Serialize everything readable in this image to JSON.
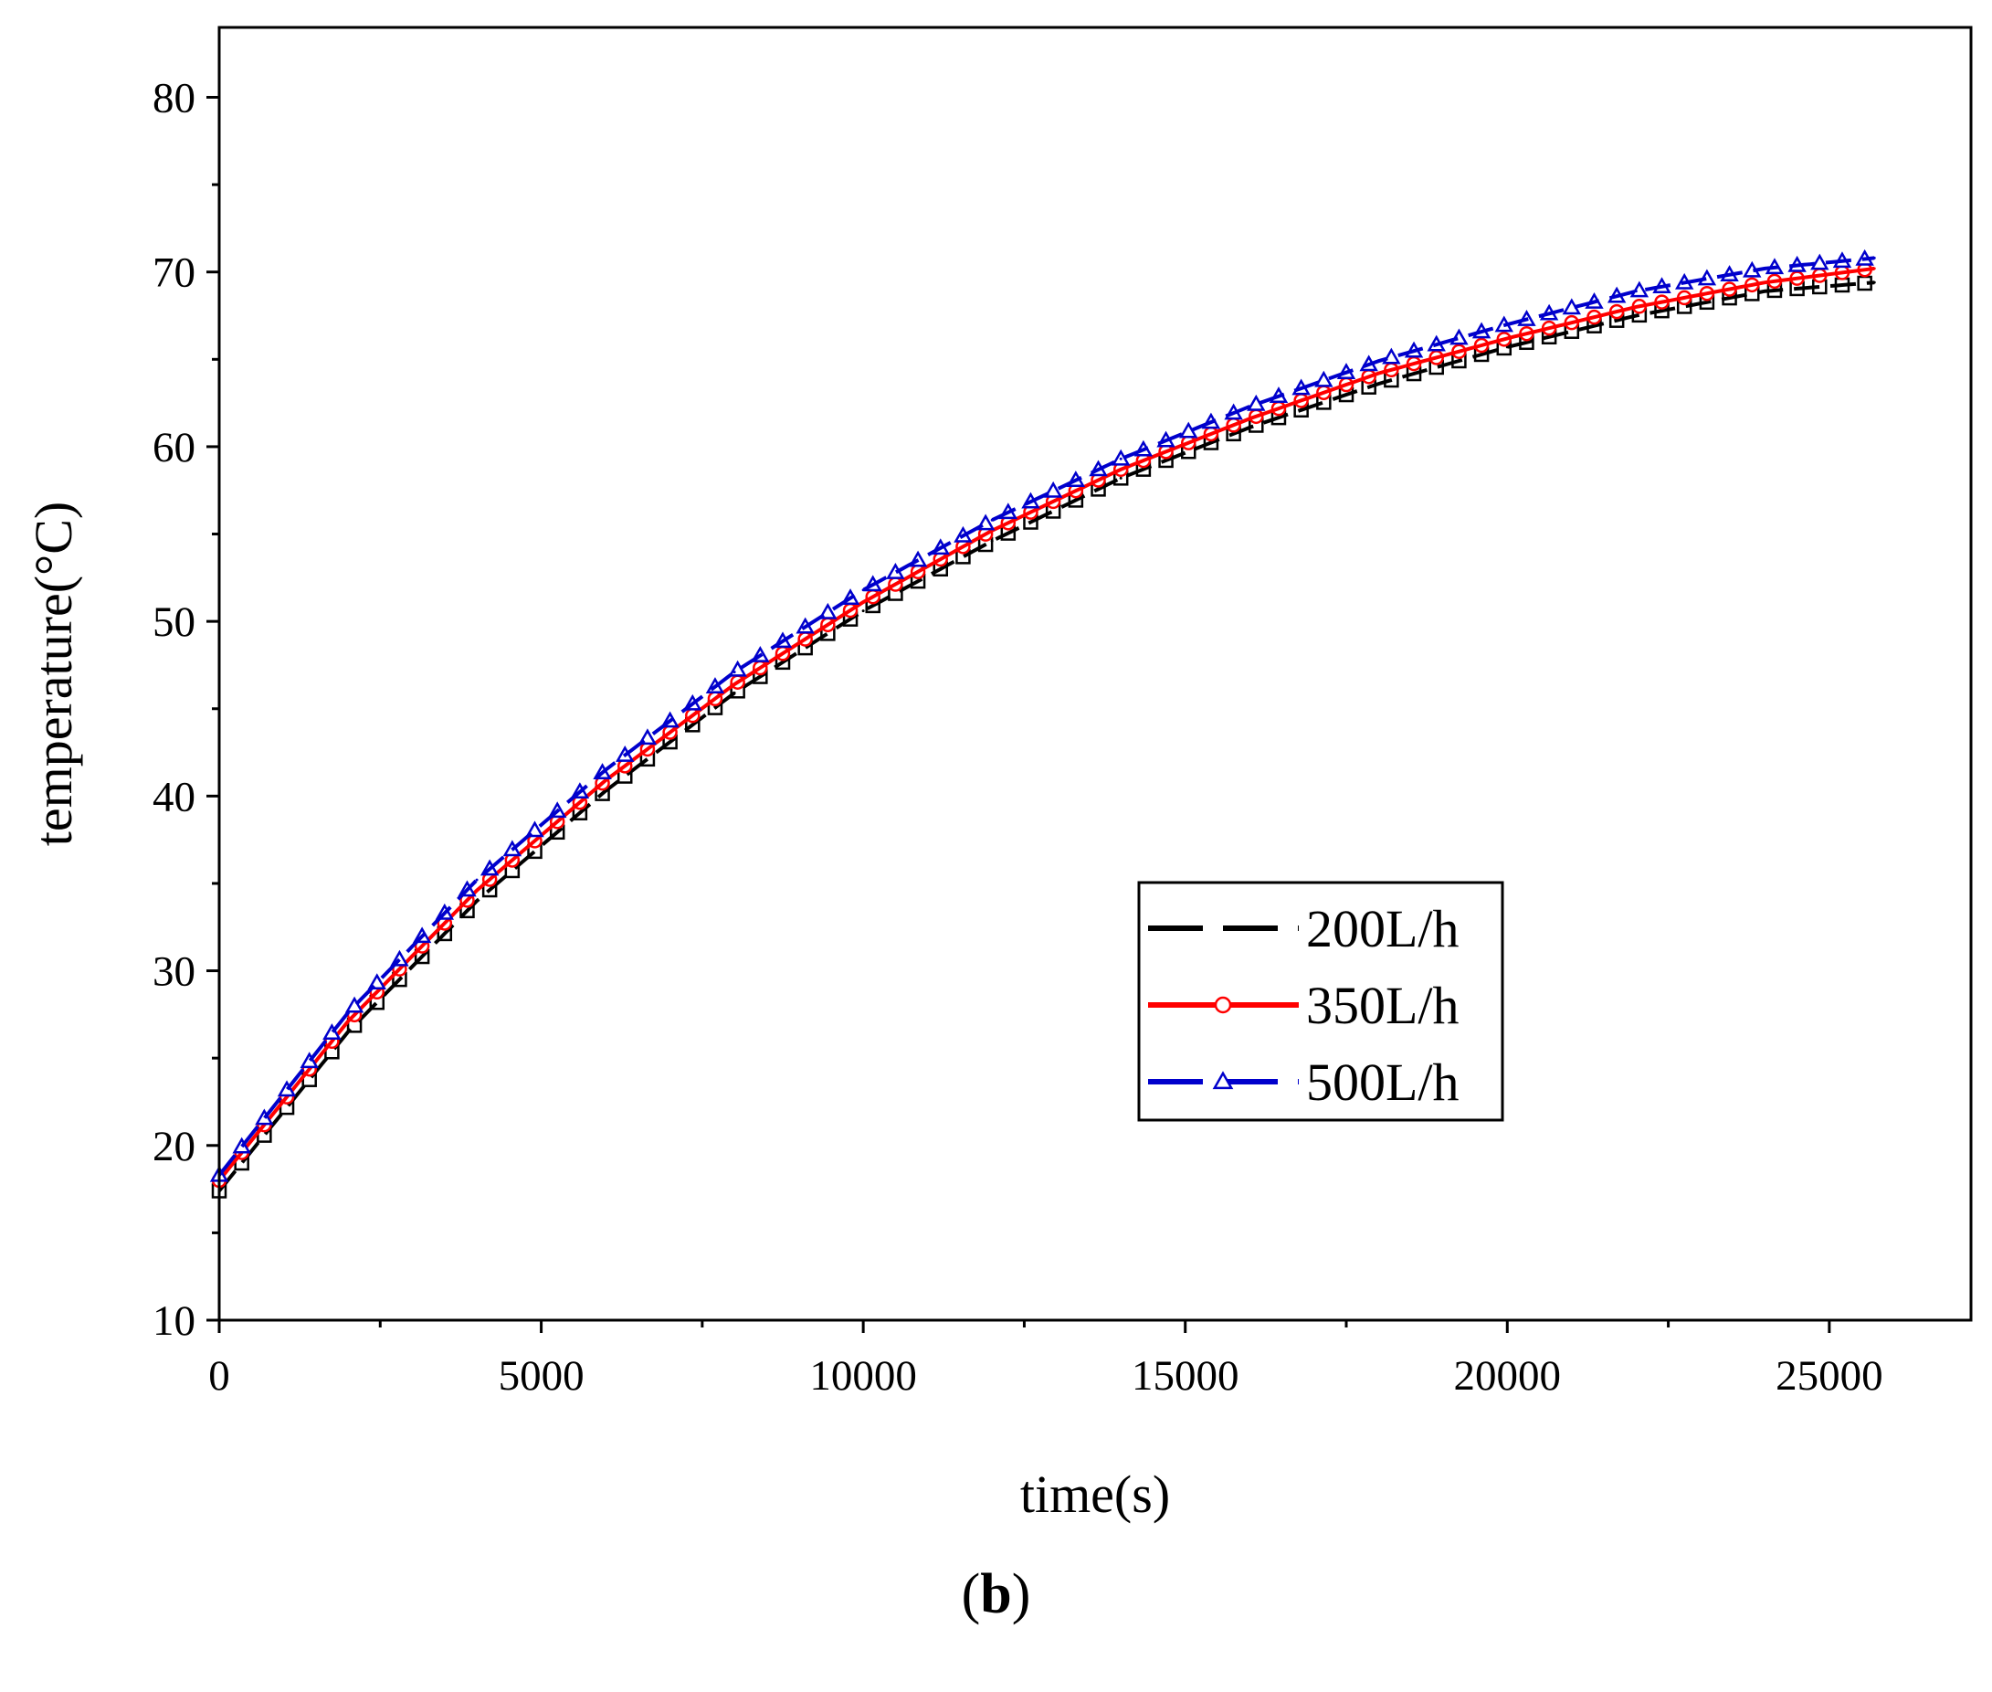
{
  "chart_data": {
    "type": "line",
    "title": "",
    "xlabel": "time(s)",
    "ylabel": "temperature(°C)",
    "xlim": [
      0,
      27200
    ],
    "ylim": [
      10,
      84
    ],
    "x_ticks": [
      0,
      5000,
      10000,
      15000,
      20000,
      25000
    ],
    "y_ticks": [
      10,
      20,
      30,
      40,
      50,
      60,
      70,
      80
    ],
    "x_tick_labels": [
      "0",
      "5000",
      "10000",
      "15000",
      "20000",
      "25000"
    ],
    "y_tick_labels": [
      "10",
      "20",
      "30",
      "40",
      "50",
      "60",
      "70",
      "80"
    ],
    "grid": false,
    "legend_position": "center-right",
    "x": [
      0,
      2000,
      4000,
      6000,
      8000,
      10000,
      12000,
      14000,
      16000,
      18000,
      20000,
      22000,
      24000,
      25700
    ],
    "series": [
      {
        "name": "200L/h",
        "color": "#000000",
        "style": "dashed",
        "marker": "square",
        "values": [
          17.4,
          26.5,
          34.0,
          40.3,
          45.9,
          50.6,
          54.6,
          58.2,
          61.1,
          63.6,
          65.7,
          67.5,
          68.9,
          69.4
        ]
      },
      {
        "name": "350L/h",
        "color": "#ff0000",
        "style": "solid",
        "marker": "circle",
        "values": [
          18.0,
          27.1,
          34.6,
          40.9,
          46.4,
          51.1,
          55.2,
          58.7,
          61.6,
          64.2,
          66.2,
          68.0,
          69.4,
          70.2
        ]
      },
      {
        "name": "500L/h",
        "color": "#0000cc",
        "style": "dashed",
        "marker": "triangle",
        "values": [
          18.3,
          27.6,
          35.2,
          41.5,
          47.1,
          51.8,
          55.8,
          59.3,
          62.3,
          64.9,
          67.0,
          68.9,
          70.2,
          70.8
        ]
      }
    ]
  },
  "panel_label": "b"
}
